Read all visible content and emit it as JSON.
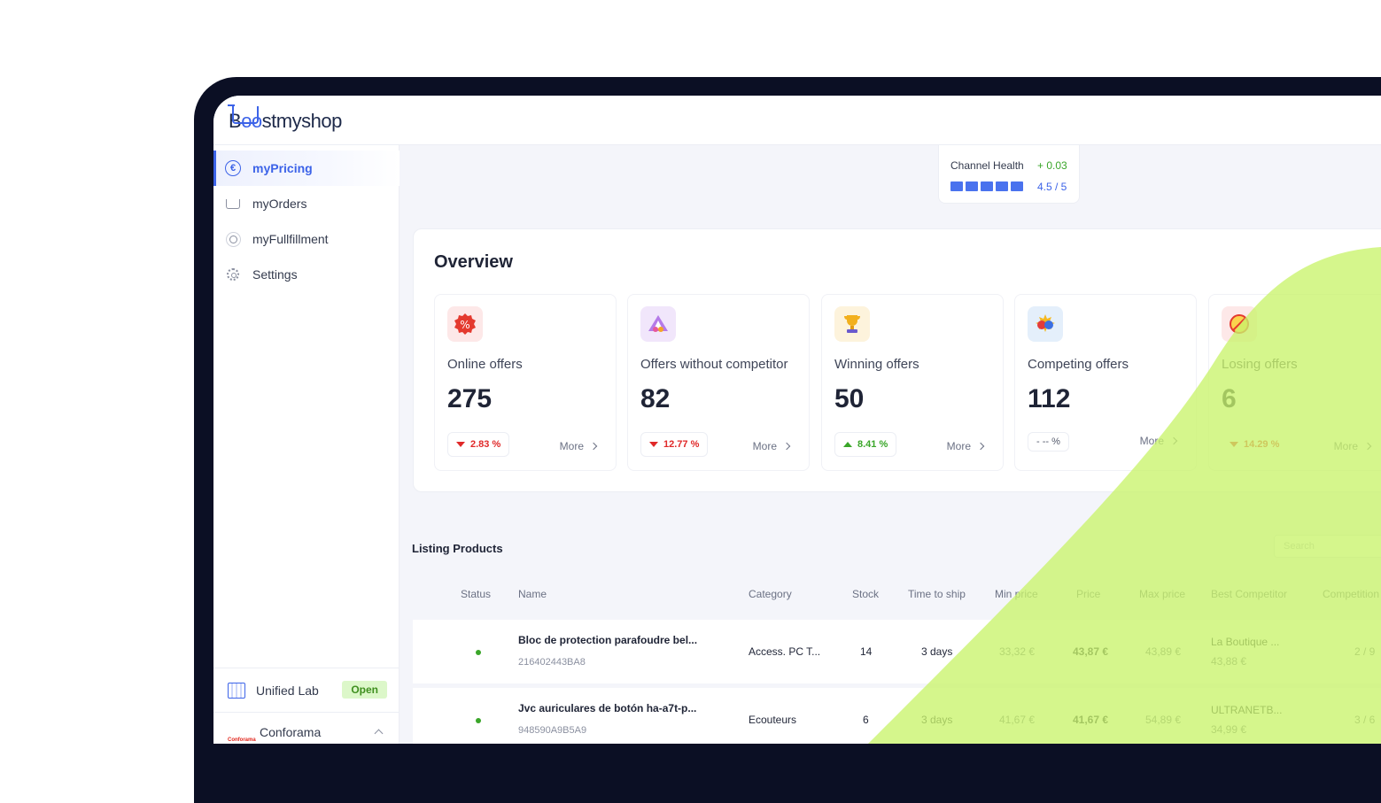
{
  "brand": {
    "logo_text_prefix": "B",
    "logo_text_oo": "oo",
    "logo_text_suffix": "stmyshop"
  },
  "sidebar": {
    "items": [
      {
        "label": "myPricing",
        "icon": "euro-icon",
        "active": true
      },
      {
        "label": "myOrders",
        "icon": "cart-icon"
      },
      {
        "label": "myFullfillment",
        "icon": "sun-icon"
      },
      {
        "label": "Settings",
        "icon": "gear-icon"
      }
    ],
    "shop_primary": {
      "name": "Unified Lab",
      "status": "Open"
    },
    "shop_secondary": {
      "name": "Conforama",
      "logo_text": "Conforama"
    }
  },
  "channel_health": {
    "label": "Channel Health",
    "delta": "+ 0.03",
    "score": "4.5 / 5",
    "bars": 5
  },
  "overview": {
    "title": "Overview",
    "cards": [
      {
        "label": "Online offers",
        "value": "275",
        "trend": "2.83 %",
        "direction": "down",
        "more": "More"
      },
      {
        "label": "Offers without competitor",
        "value": "82",
        "trend": "12.77 %",
        "direction": "down",
        "more": "More"
      },
      {
        "label": "Winning offers",
        "value": "50",
        "trend": "8.41 %",
        "direction": "up",
        "more": "More"
      },
      {
        "label": "Competing offers",
        "value": "112",
        "trend": "- -- %",
        "direction": "flat",
        "more": "More"
      },
      {
        "label": "Losing offers",
        "value": "6",
        "trend": "14.29 %",
        "direction": "down",
        "more": "More"
      }
    ]
  },
  "listing": {
    "title": "Listing Products",
    "search_placeholder": "Search",
    "columns": [
      "Status",
      "Name",
      "Category",
      "Stock",
      "Time to ship",
      "Min price",
      "Price",
      "Max price",
      "Best Competitor",
      "Competition"
    ],
    "rows": [
      {
        "name": "Bloc de protection parafoudre bel...",
        "sku": "216402443BA8",
        "category": "Access. PC T...",
        "stock": "14",
        "ship": "3 days",
        "min": "33,32 €",
        "price": "43,87 €",
        "max": "43,89 €",
        "competitor": "La Boutique ...",
        "competitor_price": "43,88 €",
        "competition": "2 / 9"
      },
      {
        "name": "Jvc auriculares de botón ha-a7t-p...",
        "sku": "948590A9B5A9",
        "category": "Ecouteurs",
        "stock": "6",
        "ship": "3 days",
        "min": "41,67 €",
        "price": "41,67 €",
        "max": "54,89 €",
        "competitor": "ULTRANETB...",
        "competitor_price": "34,99 €",
        "competition": "3 / 6"
      }
    ]
  },
  "colors": {
    "accent": "#3c63e8",
    "green_overlay": "#c6f46a",
    "up": "#3aa629",
    "down": "#e02929"
  }
}
